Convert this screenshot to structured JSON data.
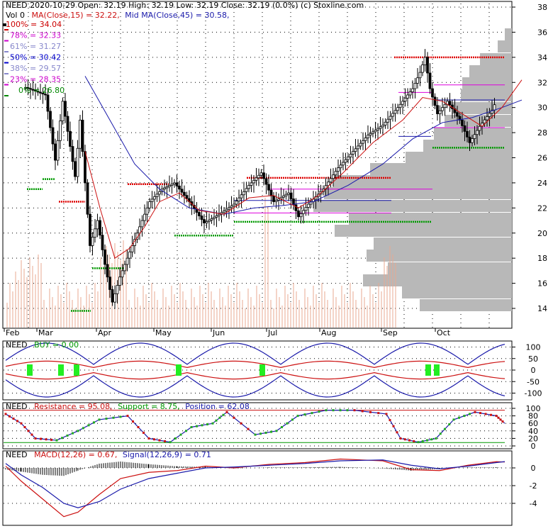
{
  "header": {
    "line1": "NEED  2020-10-29 Open: 32.19  High: 32.19  Low: 32.19  Close: 32.19 (0.0%)  (c) Stoxline.com",
    "vol_label": "Vol 0",
    "ma_label": "MA(Close,15) = 32.22,",
    "mid_ma_label": "Mid MA(Close,45) = 30.58,"
  },
  "fib_levels": [
    {
      "label": "100% = 34.04",
      "color": "#cc0000",
      "value": 34.04
    },
    {
      "label": "78% = 32.33",
      "color": "#cc00cc",
      "value": 32.33
    },
    {
      "label": "61% = 31.27",
      "color": "#8888cc",
      "value": 31.27
    },
    {
      "label": "50% = 30.42",
      "color": "#0000cc",
      "value": 30.42
    },
    {
      "label": "38% = 29.57",
      "color": "#8888cc",
      "value": 29.57
    },
    {
      "label": "23% = 28.35",
      "color": "#cc00cc",
      "value": 28.35
    },
    {
      "label": "0% = 26.80",
      "color": "#008800",
      "value": 26.8
    }
  ],
  "panels": {
    "buy": {
      "name": "NEED",
      "label": "BUY = 0.00",
      "ticks": [
        "100",
        "50",
        "0",
        "-50",
        "-100"
      ]
    },
    "resistance": {
      "name": "NEED",
      "resistance_label": "Resistance = 95.08,",
      "support_label": "Support = 8.75,",
      "position_label": "Position = 62.08",
      "ticks": [
        "100",
        "80",
        "60",
        "40",
        "20",
        "0"
      ]
    },
    "macd": {
      "name": "NEED",
      "macd_label": "MACD(12,26) = 0.67,",
      "signal_label": "Signal(12,26,9) = 0.71",
      "ticks": [
        "0",
        "-2",
        "-4"
      ]
    }
  },
  "chart_data": {
    "type": "candlestick",
    "ticker": "NEED",
    "months": [
      "Feb",
      "Mar",
      "Apr",
      "May",
      "Jun",
      "Jul",
      "Aug",
      "Sep",
      "Oct"
    ],
    "y_ticks": [
      14,
      16,
      18,
      20,
      22,
      24,
      26,
      28,
      30,
      32,
      34,
      36,
      38
    ],
    "ylim": [
      12.2,
      38.5
    ],
    "close_series": [
      {
        "t": 0,
        "v": 31.6
      },
      {
        "t": 8,
        "v": 31.0
      },
      {
        "t": 12,
        "v": 25.8
      },
      {
        "t": 15,
        "v": 30.5
      },
      {
        "t": 20,
        "v": 24.5
      },
      {
        "t": 22,
        "v": 29.0
      },
      {
        "t": 26,
        "v": 19.0
      },
      {
        "t": 29,
        "v": 21.0
      },
      {
        "t": 32,
        "v": 17.5
      },
      {
        "t": 35,
        "v": 14.5
      },
      {
        "t": 38,
        "v": 16.5
      },
      {
        "t": 42,
        "v": 18.5
      },
      {
        "t": 46,
        "v": 20.5
      },
      {
        "t": 50,
        "v": 22.5
      },
      {
        "t": 55,
        "v": 23.5
      },
      {
        "t": 60,
        "v": 24.0
      },
      {
        "t": 66,
        "v": 22.5
      },
      {
        "t": 72,
        "v": 20.8
      },
      {
        "t": 78,
        "v": 21.5
      },
      {
        "t": 84,
        "v": 22.3
      },
      {
        "t": 90,
        "v": 23.8
      },
      {
        "t": 95,
        "v": 24.8
      },
      {
        "t": 100,
        "v": 22.5
      },
      {
        "t": 106,
        "v": 23.2
      },
      {
        "t": 110,
        "v": 21.3
      },
      {
        "t": 114,
        "v": 22.3
      },
      {
        "t": 120,
        "v": 23.5
      },
      {
        "t": 126,
        "v": 25.2
      },
      {
        "t": 132,
        "v": 26.5
      },
      {
        "t": 138,
        "v": 27.8
      },
      {
        "t": 144,
        "v": 28.6
      },
      {
        "t": 150,
        "v": 30.0
      },
      {
        "t": 156,
        "v": 31.5
      },
      {
        "t": 159,
        "v": 32.8
      },
      {
        "t": 161,
        "v": 34.0
      },
      {
        "t": 163,
        "v": 31.5
      },
      {
        "t": 166,
        "v": 29.5
      },
      {
        "t": 170,
        "v": 30.5
      },
      {
        "t": 175,
        "v": 29.0
      },
      {
        "t": 179,
        "v": 27.2
      },
      {
        "t": 183,
        "v": 28.5
      },
      {
        "t": 188,
        "v": 29.8
      },
      {
        "t": 192,
        "v": 31.5
      },
      {
        "t": 196,
        "v": 32.8
      },
      {
        "t": 200,
        "v": 32.2
      }
    ],
    "ma15_series": [
      {
        "t": 24,
        "v": 26.5
      },
      {
        "t": 30,
        "v": 22.0
      },
      {
        "t": 36,
        "v": 18.0
      },
      {
        "t": 42,
        "v": 18.8
      },
      {
        "t": 48,
        "v": 20.5
      },
      {
        "t": 54,
        "v": 22.5
      },
      {
        "t": 62,
        "v": 23.2
      },
      {
        "t": 70,
        "v": 21.8
      },
      {
        "t": 80,
        "v": 21.5
      },
      {
        "t": 90,
        "v": 22.8
      },
      {
        "t": 100,
        "v": 23.0
      },
      {
        "t": 110,
        "v": 22.0
      },
      {
        "t": 118,
        "v": 23.0
      },
      {
        "t": 128,
        "v": 24.8
      },
      {
        "t": 140,
        "v": 27.2
      },
      {
        "t": 152,
        "v": 29.0
      },
      {
        "t": 160,
        "v": 30.8
      },
      {
        "t": 168,
        "v": 30.5
      },
      {
        "t": 176,
        "v": 29.5
      },
      {
        "t": 184,
        "v": 28.5
      },
      {
        "t": 192,
        "v": 30.0
      },
      {
        "t": 200,
        "v": 32.2
      }
    ],
    "ma45_series": [
      {
        "t": 24,
        "v": 32.5
      },
      {
        "t": 34,
        "v": 29.0
      },
      {
        "t": 44,
        "v": 25.5
      },
      {
        "t": 54,
        "v": 23.5
      },
      {
        "t": 66,
        "v": 22.0
      },
      {
        "t": 80,
        "v": 21.5
      },
      {
        "t": 92,
        "v": 22.0
      },
      {
        "t": 104,
        "v": 22.2
      },
      {
        "t": 116,
        "v": 22.5
      },
      {
        "t": 130,
        "v": 23.8
      },
      {
        "t": 144,
        "v": 25.5
      },
      {
        "t": 156,
        "v": 27.5
      },
      {
        "t": 168,
        "v": 28.8
      },
      {
        "t": 180,
        "v": 29.2
      },
      {
        "t": 192,
        "v": 30.0
      },
      {
        "t": 200,
        "v": 30.6
      }
    ]
  }
}
